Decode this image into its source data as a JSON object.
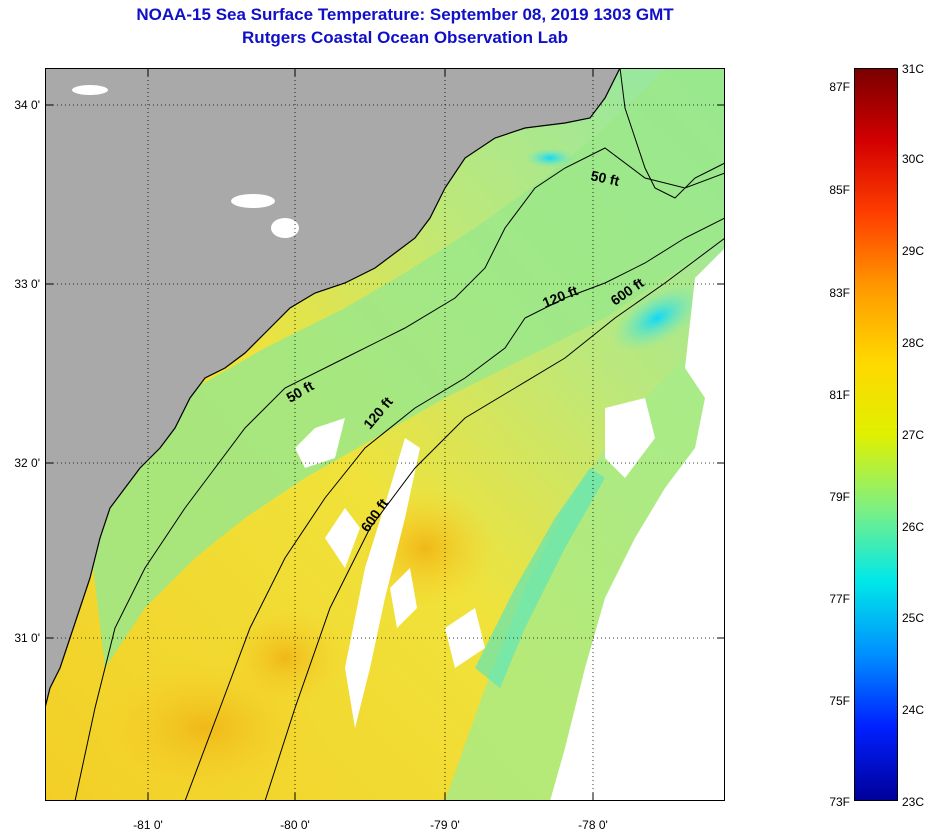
{
  "title": "NOAA-15 Sea Surface Temperature:  September 08, 2019 1303 GMT",
  "subtitle": "Rutgers Coastal Ocean Observation Lab",
  "lat_labels": [
    "34 0'",
    "33 0'",
    "32 0'",
    "31 0'"
  ],
  "lon_labels": [
    "-81 0'",
    "-80 0'",
    "-79 0'",
    "-78 0'"
  ],
  "contour_labels": [
    "50 ft",
    "120 ft",
    "600 ft",
    "50 ft",
    "120 ft",
    "600 ft"
  ],
  "colorbar": {
    "fahrenheit": [
      "87F",
      "85F",
      "83F",
      "81F",
      "79F",
      "77F",
      "75F",
      "73F"
    ],
    "celsius": [
      "31C",
      "30C",
      "29C",
      "28C",
      "27C",
      "26C",
      "25C",
      "24C",
      "23C"
    ],
    "gradient": [
      "#7a0000",
      "#d40000",
      "#ff4000",
      "#ff9a00",
      "#ffd800",
      "#e0f000",
      "#7ff080",
      "#00e8e8",
      "#0090ff",
      "#0020ff",
      "#00009a"
    ]
  },
  "colors": {
    "land": "#a9a9a9",
    "no_data": "#ffffff",
    "title": "#1010c8"
  }
}
